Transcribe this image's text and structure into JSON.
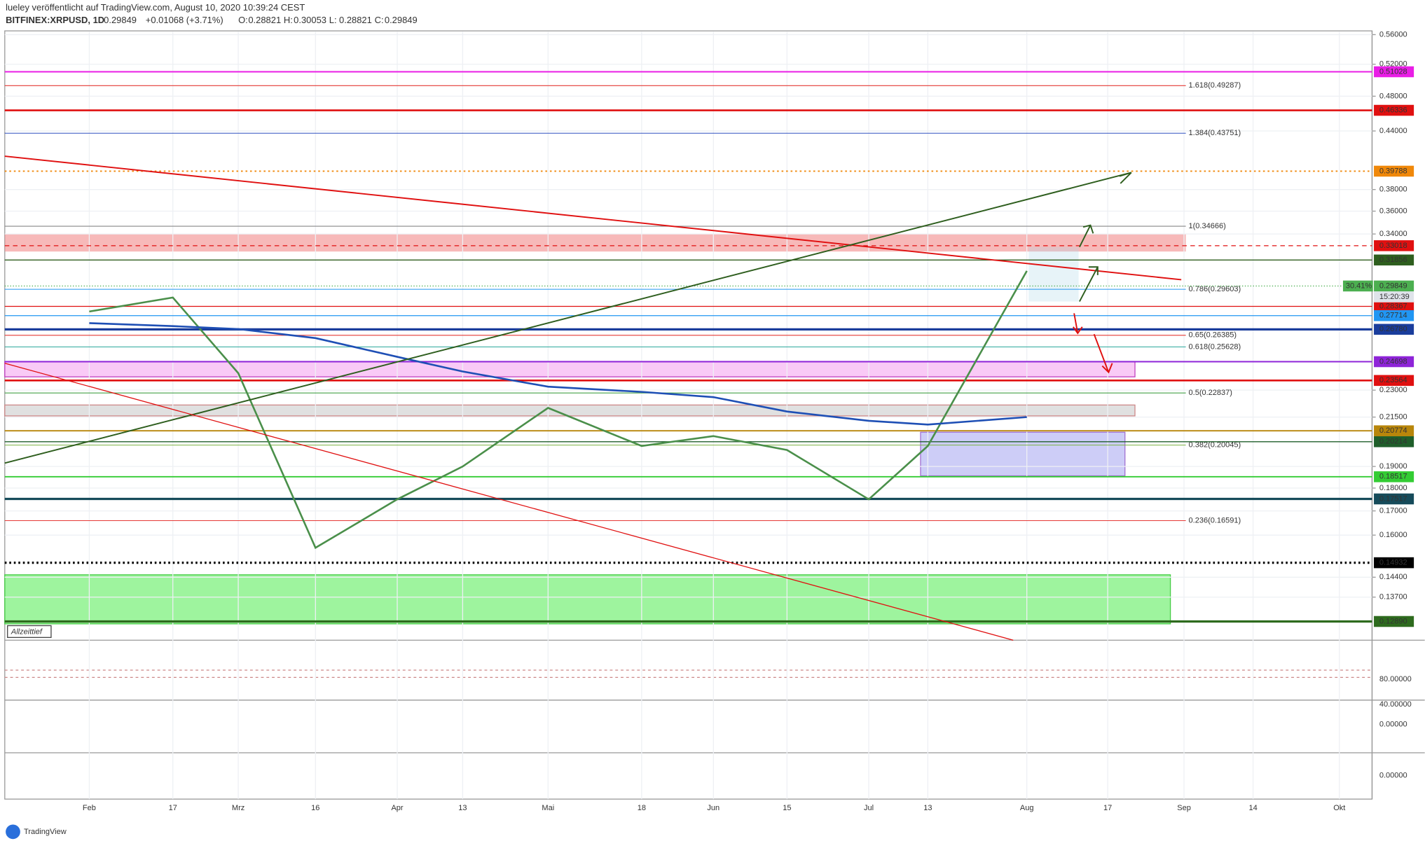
{
  "header": {
    "line1": "lueley veröffentlicht auf TradingView.com, August 10, 2020 10:39:24 CEST",
    "symbol": "BITFINEX:XRPUSD, 1D",
    "price": "0.29849",
    "change": "+0.01068 (+3.71%)",
    "ohlc": [
      {
        "label": "O:",
        "value": "0.28821"
      },
      {
        "label": "H:",
        "value": "0.30053"
      },
      {
        "label": "L:",
        "value": "0.28821"
      },
      {
        "label": "C:",
        "value": "0.29849"
      }
    ]
  },
  "chart_data": {
    "type": "line",
    "log_scale": true,
    "grid": true,
    "ylim": [
      0.123,
      0.564
    ],
    "yticks": [
      {
        "value": 0.56,
        "label": "0.56000"
      },
      {
        "value": 0.52,
        "label": "0.52000"
      },
      {
        "value": 0.48,
        "label": "0.48000"
      },
      {
        "value": 0.44,
        "label": "0.44000"
      },
      {
        "value": 0.38,
        "label": "0.38000"
      },
      {
        "value": 0.36,
        "label": "0.36000"
      },
      {
        "value": 0.34,
        "label": "0.34000"
      },
      {
        "value": 0.23,
        "label": "0.23000"
      },
      {
        "value": 0.215,
        "label": "0.21500"
      },
      {
        "value": 0.19,
        "label": "0.19000"
      },
      {
        "value": 0.18,
        "label": "0.18000"
      },
      {
        "value": 0.17,
        "label": "0.17000"
      },
      {
        "value": 0.16,
        "label": "0.16000"
      },
      {
        "value": 0.144,
        "label": "0.14400"
      },
      {
        "value": 0.137,
        "label": "0.13700"
      }
    ],
    "categories": [
      "Feb",
      "17",
      "Mrz",
      "16",
      "Apr",
      "13",
      "Mai",
      "18",
      "Jun",
      "15",
      "Jul",
      "13",
      "Aug",
      "17",
      "Sep",
      "14",
      "Okt"
    ],
    "series": [
      {
        "color": "#4a8f4a",
        "values": [
          0.28,
          0.29,
          0.24,
          0.155,
          0.175,
          0.19,
          0.22,
          0.2,
          0.205,
          0.198,
          0.175,
          0.2,
          0.31,
          null,
          null,
          null,
          null
        ]
      },
      {
        "color": "#1e4fb5",
        "values": [
          0.272,
          0.27,
          0.268,
          0.262,
          0.25,
          0.241,
          0.232,
          0.229,
          0.226,
          0.218,
          0.213,
          0.211,
          0.215,
          null,
          null,
          null,
          null
        ]
      }
    ],
    "levels": [
      {
        "value": 0.51028,
        "label": "0.51028",
        "color": "#e91ee6",
        "style": "solid",
        "width": 1.5
      },
      {
        "value": 0.46336,
        "label": "0.46336",
        "color": "#e01010",
        "style": "solid",
        "width": 2
      },
      {
        "value": 0.39788,
        "label": "0.39788",
        "color": "#f0880a",
        "style": "dotted",
        "width": 1.5
      },
      {
        "value": 0.33018,
        "label": "0.33018",
        "color": "#e01010",
        "style": "dashed",
        "width": 1
      },
      {
        "value": 0.31856,
        "label": "0.31856",
        "color": "#2e5e1e",
        "style": "solid",
        "width": 1
      },
      {
        "value": 0.28367,
        "label": "0.28367",
        "color": "#e01010",
        "style": "solid",
        "width": 1
      },
      {
        "value": 0.27714,
        "label": "0.27714",
        "color": "#2196f3",
        "style": "solid",
        "width": 1
      },
      {
        "value": 0.2678,
        "label": "0.26780",
        "color": "#1a3d9c",
        "style": "solid",
        "width": 2.5
      },
      {
        "value": 0.24698,
        "label": "0.24698",
        "color": "#8e24d8",
        "style": "solid",
        "width": 1.5
      },
      {
        "value": 0.23564,
        "label": "0.23564",
        "color": "#e01010",
        "style": "solid",
        "width": 2
      },
      {
        "value": 0.20774,
        "label": "0.20774",
        "color": "#b8860b",
        "style": "solid",
        "width": 1.5
      },
      {
        "value": 0.20214,
        "label": "0.20214",
        "color": "#1f5e2a",
        "style": "solid",
        "width": 1
      },
      {
        "value": 0.18517,
        "label": "0.18517",
        "color": "#33cc33",
        "style": "solid",
        "width": 1.5
      },
      {
        "value": 0.17517,
        "label": "0.17517",
        "color": "#164b5a",
        "style": "solid",
        "width": 2.5
      },
      {
        "value": 0.14932,
        "label": "0.14932",
        "color": "#000000",
        "style": "dotted",
        "width": 2.5
      },
      {
        "value": 0.1289,
        "label": "0.12890",
        "color": "#2e6b1e",
        "style": "solid",
        "width": 2.5
      }
    ],
    "fib": [
      {
        "value": 0.49287,
        "label": "1.618(0.49287)",
        "color": "#e53935"
      },
      {
        "value": 0.43751,
        "label": "1.384(0.43751)",
        "color": "#3050c0"
      },
      {
        "value": 0.34666,
        "label": "1(0.34666)",
        "color": "#888888"
      },
      {
        "value": 0.29603,
        "label": "0.786(0.29603)",
        "color": "#2196f3"
      },
      {
        "value": 0.26385,
        "label": "0.65(0.26385)",
        "color": "#e53935"
      },
      {
        "value": 0.25628,
        "label": "0.618(0.25628)",
        "color": "#26a69a"
      },
      {
        "value": 0.22837,
        "label": "0.5(0.22837)",
        "color": "#43a047"
      },
      {
        "value": 0.20045,
        "label": "0.382(0.20045)",
        "color": "#7cb342"
      },
      {
        "value": 0.16591,
        "label": "0.236(0.16591)",
        "color": "#e53935"
      }
    ],
    "current": {
      "value": 0.29849,
      "label": "0.29849",
      "change": "30.41%",
      "countdown": "15:20:39",
      "color": "#4caf50"
    },
    "annotation": "Allzeittief",
    "panes": [
      "80.00000",
      "40.00000",
      "0.00000",
      "0.00000"
    ]
  },
  "brand": "TradingView"
}
